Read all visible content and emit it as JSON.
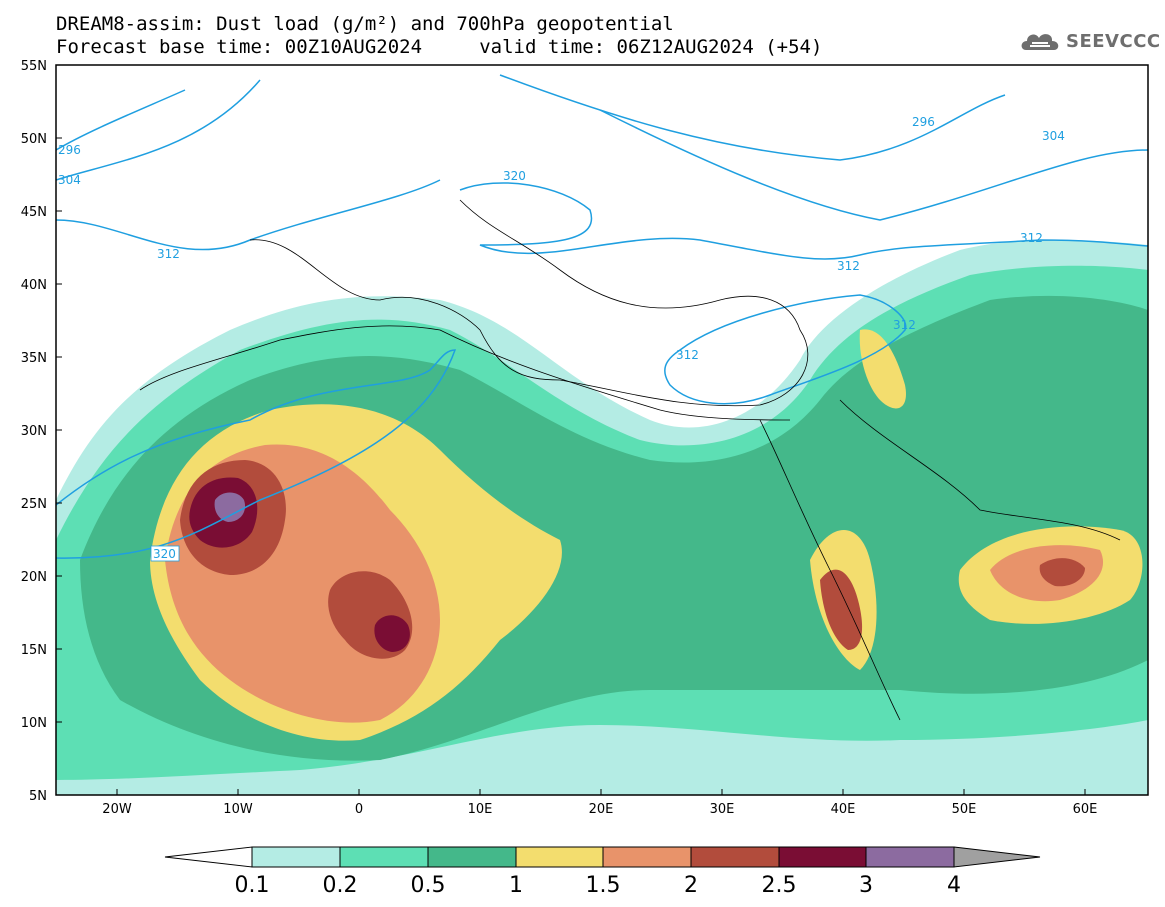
{
  "header": {
    "line1": "DREAM8-assim: Dust load (g/m²) and 700hPa geopotential",
    "line2": "Forecast base time: 00Z10AUG2024     valid time: 06Z12AUG2024 (+54)"
  },
  "logo": {
    "text": "SEEVCCC",
    "icon": "cloud-logo-icon"
  },
  "map": {
    "lon_range": [
      -25,
      65
    ],
    "lat_range": [
      5,
      55
    ],
    "lon_ticks": [
      "20W",
      "10W",
      "0",
      "10E",
      "20E",
      "30E",
      "40E",
      "50E",
      "60E"
    ],
    "lat_ticks": [
      "55N",
      "50N",
      "45N",
      "40N",
      "35N",
      "30N",
      "25N",
      "20N",
      "15N",
      "10N",
      "5N"
    ],
    "contour_labels": [
      "296",
      "304",
      "320",
      "312",
      "312",
      "312",
      "312",
      "312",
      "296",
      "304",
      "320"
    ],
    "contour_color": "#1f9fe0"
  },
  "colorbar": {
    "levels": [
      "0.1",
      "0.2",
      "0.5",
      "1",
      "1.5",
      "2",
      "2.5",
      "3",
      "4"
    ],
    "colors": [
      "#b4ece4",
      "#5ddfb4",
      "#44b88a",
      "#f3dd6e",
      "#e8936a",
      "#b24c3c",
      "#7a0d34",
      "#8c6ba0"
    ],
    "under_color": "#ffffff",
    "over_color": "#a0a0a0"
  }
}
